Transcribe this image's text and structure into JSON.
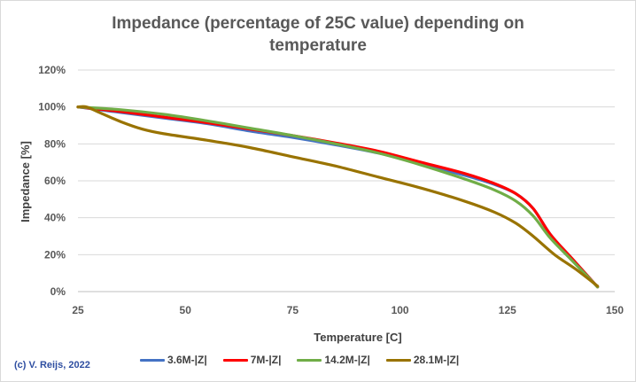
{
  "title_line1": "Impedance (percentage of 25C value) depending on",
  "title_line2": "temperature",
  "credit": "(c) V. Reijs, 2022",
  "chart_data": {
    "type": "line",
    "title": "Impedance (percentage of 25C value) depending on temperature",
    "xlabel": "Temperature [C]",
    "ylabel": "Impedance [%]",
    "xlim": [
      25,
      150
    ],
    "ylim": [
      0,
      120
    ],
    "xticks": [
      25,
      50,
      75,
      100,
      125,
      150
    ],
    "yticks": [
      0,
      20,
      40,
      60,
      80,
      100,
      120
    ],
    "ytick_labels": [
      "0%",
      "20%",
      "40%",
      "60%",
      "80%",
      "100%",
      "120%"
    ],
    "grid": "horizontal",
    "legend_position": "bottom",
    "series": [
      {
        "name": "3.6M-|Z|",
        "color": "#4472c4",
        "x": [
          25,
          35,
          45,
          55,
          65,
          75,
          85,
          95,
          105,
          115,
          122,
          127,
          131,
          135,
          140,
          146
        ],
        "y": [
          100,
          97,
          94,
          91,
          87,
          83.5,
          79.5,
          75,
          69,
          63,
          58,
          53,
          45,
          31,
          18,
          2.5
        ]
      },
      {
        "name": "7M-|Z|",
        "color": "#ff0000",
        "x": [
          25,
          35,
          45,
          55,
          65,
          75,
          85,
          95,
          105,
          115,
          122,
          127,
          131,
          135,
          140,
          146
        ],
        "y": [
          100,
          97.5,
          94.5,
          91.5,
          88,
          84.5,
          80.5,
          76,
          70,
          64,
          58.5,
          53,
          45,
          31,
          18,
          2.5
        ]
      },
      {
        "name": "14.2M-|Z|",
        "color": "#70ad47",
        "x": [
          25,
          35,
          45,
          55,
          65,
          75,
          85,
          95,
          105,
          115,
          122,
          127,
          131,
          135,
          140,
          146
        ],
        "y": [
          100,
          98.5,
          96,
          92.5,
          88.5,
          84.5,
          80,
          75,
          68.5,
          61,
          55,
          49,
          41,
          29,
          17,
          2.5
        ]
      },
      {
        "name": "28.1M-|Z|",
        "color": "#997300",
        "x": [
          25,
          27,
          30,
          35,
          40,
          45,
          55,
          65,
          75,
          85,
          95,
          105,
          115,
          122,
          127,
          131,
          136,
          141,
          146
        ],
        "y": [
          100,
          100,
          97,
          92,
          88,
          85.5,
          82,
          78,
          73,
          68,
          62,
          56,
          49,
          43,
          37,
          30,
          20,
          12,
          3
        ]
      }
    ]
  }
}
